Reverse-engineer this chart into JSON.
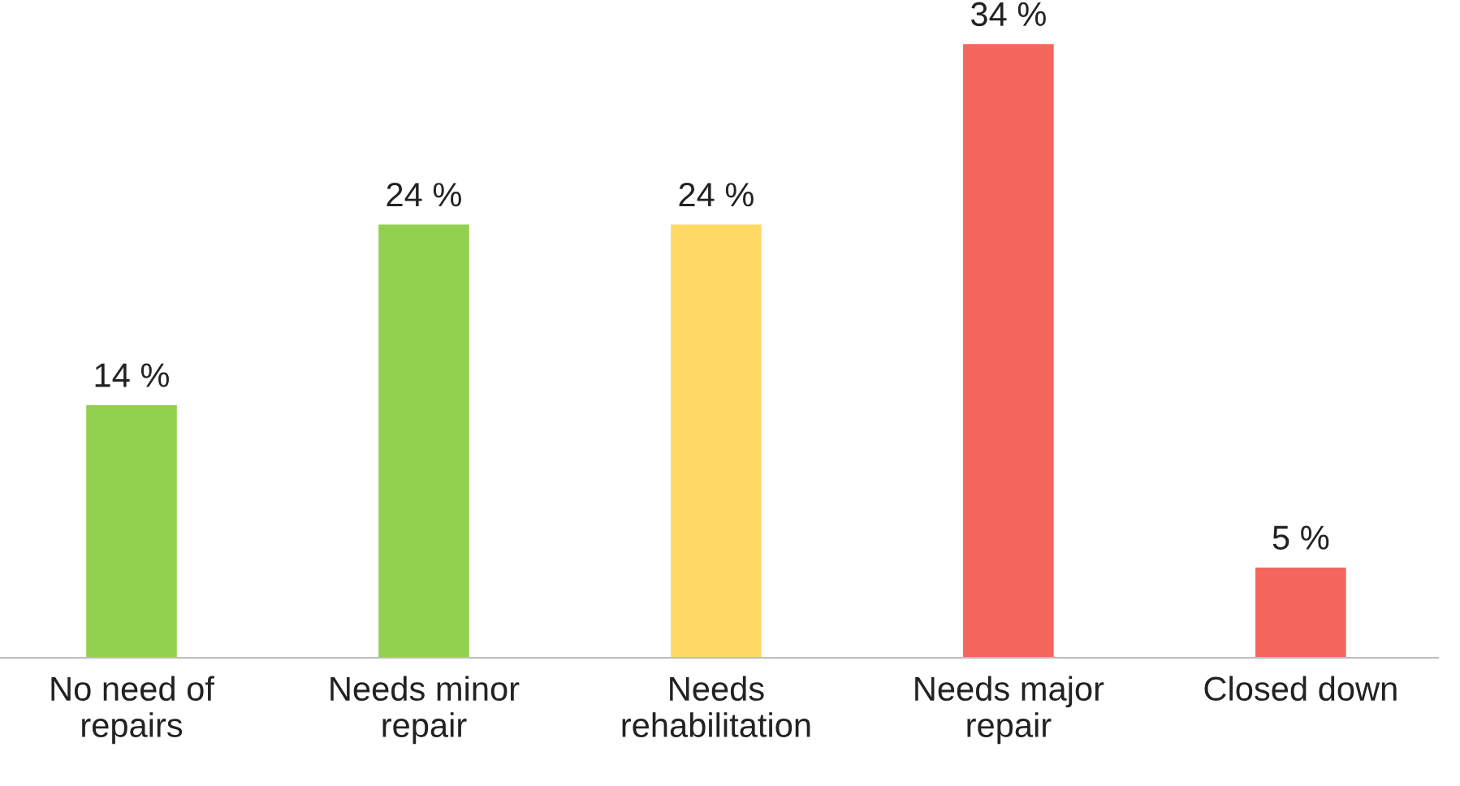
{
  "chart_data": {
    "type": "bar",
    "categories": [
      "No need of\nrepairs",
      "Needs minor\nrepair",
      "Needs\nrehabilitation",
      "Needs major\nrepair",
      "Closed down"
    ],
    "values": [
      14,
      24,
      24,
      34,
      5
    ],
    "colors": [
      "#92d050",
      "#92d050",
      "#ffd966",
      "#f4665c",
      "#f4665c"
    ],
    "value_labels": [
      "14 %",
      "24 %",
      "24 %",
      "34 %",
      "5 %"
    ],
    "grid": false,
    "legend": false,
    "tick_labels": "x"
  }
}
